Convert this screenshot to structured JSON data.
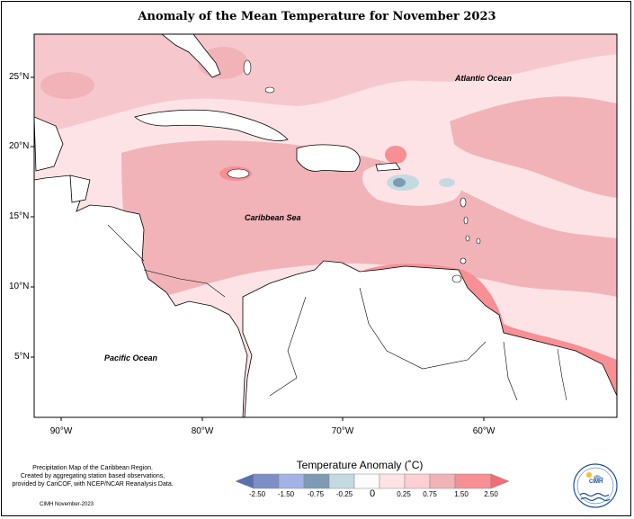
{
  "map": {
    "title": "Anomaly of the Mean Temperature for November 2023",
    "latitude_labels": [
      "25°N",
      "20°N",
      "15°N",
      "10°N",
      "5°N"
    ],
    "longitude_labels": [
      "90°W",
      "80°W",
      "70°W",
      "60°W"
    ],
    "place_labels": {
      "atlantic": "Atlantic Ocean",
      "caribbean": "Caribbean Sea",
      "pacific": "Pacific Ocean"
    }
  },
  "legend": {
    "title": "Temperature Anomaly (˚C)",
    "ticks": [
      "-2.50",
      "-1.50",
      "-0.75",
      "-0.25",
      "0",
      "0.25",
      "0.75",
      "1.50",
      "2.50"
    ],
    "colors": [
      "#7d8fc6",
      "#a3b3e6",
      "#7e9bb3",
      "#c3dbe0",
      "#fbfbfb",
      "#fde3e6",
      "#f1b3b8",
      "#f78f95",
      "#f26d76"
    ]
  },
  "footer": {
    "credits": [
      "Precipitation Map of the Caribbean Region.",
      "Created by aggregating station based observations,",
      "provided by CariCOF, with NCEP/NCAR Reanalysis Data."
    ],
    "stamp": "CIMH November-2023",
    "logo_text": "CIMH"
  },
  "colors": {
    "light_pink": "#fde3e6",
    "medium_pink": "#f1b3b8",
    "dark_pink": "#f78f95",
    "light_blue": "#c3dbe0",
    "steel_blue": "#7e9bb3"
  }
}
